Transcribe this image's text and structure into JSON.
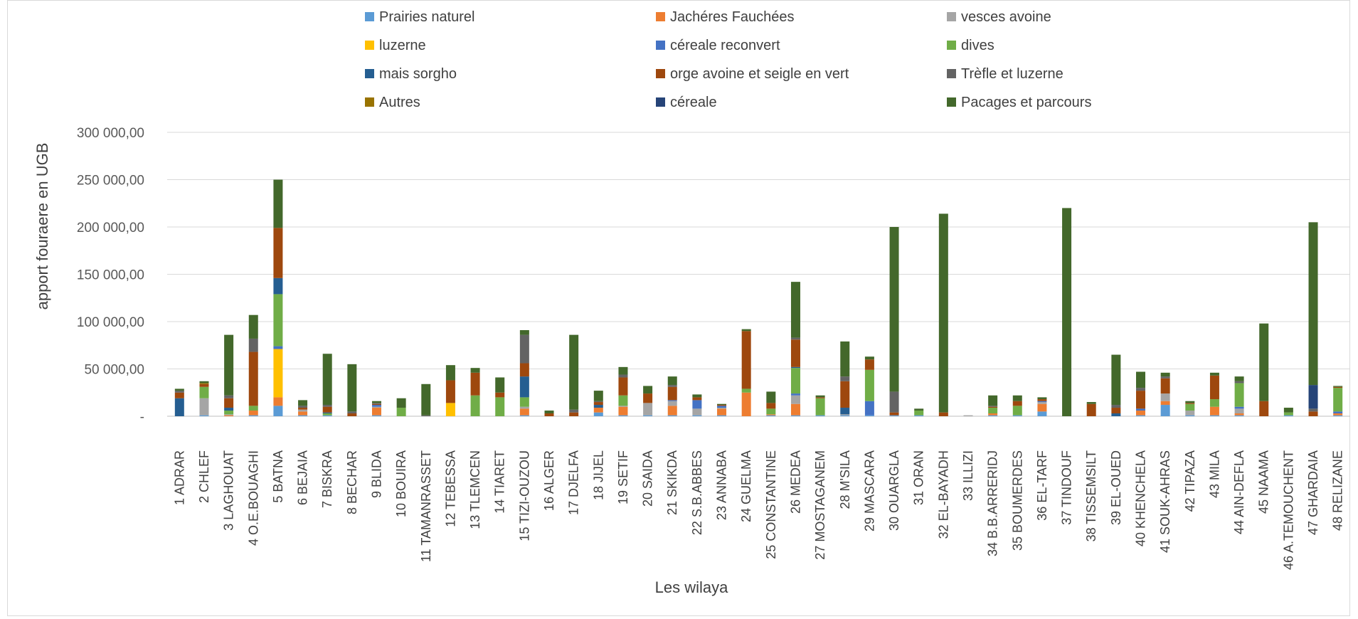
{
  "chart_data": {
    "type": "bar",
    "stacked": true,
    "xlabel": "Les wilaya",
    "ylabel": "apport  fouraere en UGB",
    "ylim": [
      0,
      300000
    ],
    "y_ticks": [
      "-",
      "50 000,00",
      "100 000,00",
      "150 000,00",
      "200 000,00",
      "250 000,00",
      "300 000,00"
    ],
    "grid": true,
    "legend_position": "top",
    "categories": [
      "1 ADRAR",
      "2 CHLEF",
      "3 LAGHOUAT",
      "4 O.E.BOUAGHI",
      "5 BATNA",
      "6 BEJAIA",
      "7 BISKRA",
      "8 BECHAR",
      "9 BLIDA",
      "10 BOUIRA",
      "11 TAMANRASSET",
      "12 TEBESSA",
      "13 TLEMCEN",
      "14 TIARET",
      "15 TIZI-OUZOU",
      "16 ALGER",
      "17 DJELFA",
      "18 JIJEL",
      "19 SETIF",
      "20 SAIDA",
      "21 SKIKDA",
      "22 S.B.ABBES",
      "23 ANNABA",
      "24 GUELMA",
      "25 CONSTANTINE",
      "26 MEDEA",
      "27 MOSTAGANEM",
      "28 M'SILA",
      "29 MASCARA",
      "30 OUARGLA",
      "31 ORAN",
      "32 EL-BAYADH",
      "33 ILLIZI",
      "34 B.B.ARRERIDJ",
      "35 BOUMERDES",
      "36 EL-TARF",
      "37 TINDOUF",
      "38 TISSEMSILT",
      "39 EL-OUED",
      "40 KHENCHELA",
      "41 SOUK-AHRAS",
      "42 TIPAZA",
      "43 MILA",
      "44 AIN-DEFLA",
      "45 NAAMA",
      "46 A.TEMOUCHENT",
      "47 GHARDAIA",
      "48 RELIZANE"
    ],
    "series": [
      {
        "name": "Prairies naturel",
        "color": "#5b9bd5",
        "values": [
          0,
          1000,
          0,
          1000,
          11000,
          1000,
          1000,
          0,
          1000,
          0,
          0,
          0,
          0,
          0,
          1000,
          0,
          0,
          4000,
          1000,
          1000,
          1000,
          1000,
          1000,
          0,
          1000,
          1000,
          1000,
          1000,
          1000,
          1000,
          1000,
          0,
          0,
          1000,
          1000,
          5000,
          0,
          0,
          0,
          1000,
          12000,
          1000,
          1000,
          1000,
          0,
          1000,
          0,
          1000
        ]
      },
      {
        "name": "Jachéres Fauchées",
        "color": "#ed7d31",
        "values": [
          0,
          0,
          1000,
          5000,
          9000,
          4000,
          0,
          0,
          8000,
          0,
          0,
          0,
          0,
          0,
          7000,
          0,
          0,
          5000,
          9000,
          0,
          10000,
          0,
          7000,
          25000,
          1000,
          12000,
          0,
          0,
          0,
          0,
          0,
          0,
          0,
          2000,
          0,
          8000,
          0,
          0,
          0,
          5000,
          4000,
          0,
          9000,
          2000,
          0,
          0,
          0,
          2000
        ]
      },
      {
        "name": "vesces avoine",
        "color": "#a5a5a5",
        "values": [
          0,
          18000,
          1000,
          0,
          0,
          2000,
          0,
          0,
          1000,
          0,
          0,
          0,
          0,
          0,
          2000,
          0,
          0,
          0,
          1000,
          13000,
          5000,
          7000,
          1000,
          0,
          0,
          9000,
          0,
          1000,
          0,
          0,
          0,
          0,
          1000,
          0,
          0,
          2000,
          0,
          0,
          0,
          0,
          8000,
          5000,
          0,
          5000,
          0,
          0,
          0,
          0
        ]
      },
      {
        "name": "luzerne",
        "color": "#ffc000",
        "values": [
          0,
          0,
          0,
          0,
          51000,
          0,
          0,
          0,
          0,
          0,
          0,
          14000,
          0,
          0,
          0,
          0,
          0,
          0,
          0,
          0,
          0,
          0,
          0,
          0,
          0,
          0,
          0,
          0,
          0,
          0,
          0,
          0,
          0,
          0,
          0,
          0,
          0,
          0,
          0,
          0,
          0,
          0,
          0,
          0,
          0,
          0,
          0,
          0
        ]
      },
      {
        "name": "céreale reconvert",
        "color": "#4472c4",
        "values": [
          0,
          0,
          0,
          0,
          3000,
          0,
          0,
          0,
          2000,
          0,
          0,
          0,
          0,
          0,
          0,
          0,
          0,
          0,
          0,
          0,
          1000,
          9000,
          2000,
          0,
          0,
          2000,
          0,
          0,
          15000,
          0,
          0,
          0,
          0,
          0,
          0,
          1000,
          0,
          0,
          0,
          2000,
          0,
          0,
          0,
          2000,
          0,
          0,
          0,
          2000
        ]
      },
      {
        "name": "dives",
        "color": "#70ad47",
        "values": [
          0,
          12000,
          4000,
          5000,
          55000,
          0,
          2000,
          0,
          0,
          9000,
          0,
          0,
          22000,
          20000,
          10000,
          0,
          0,
          0,
          11000,
          0,
          0,
          0,
          0,
          4000,
          6000,
          27000,
          18000,
          0,
          33000,
          0,
          5000,
          0,
          0,
          6000,
          10000,
          0,
          0,
          0,
          0,
          0,
          0,
          7000,
          8000,
          25000,
          0,
          3000,
          0,
          25000
        ]
      },
      {
        "name": "mais sorgho",
        "color": "#255e91",
        "values": [
          19000,
          0,
          3000,
          0,
          17000,
          0,
          1000,
          0,
          0,
          0,
          0,
          0,
          0,
          0,
          22000,
          0,
          0,
          3000,
          0,
          0,
          0,
          0,
          0,
          0,
          0,
          1000,
          0,
          7000,
          0,
          0,
          0,
          0,
          0,
          0,
          0,
          0,
          0,
          0,
          3000,
          0,
          0,
          0,
          0,
          0,
          0,
          0,
          0,
          0
        ]
      },
      {
        "name": "orge avoine et seigle en vert",
        "color": "#9e480e",
        "values": [
          6000,
          3000,
          10000,
          57000,
          53000,
          2000,
          6000,
          3000,
          1000,
          0,
          0,
          24000,
          24000,
          5000,
          14000,
          3000,
          4000,
          3000,
          19000,
          10000,
          14000,
          3000,
          1000,
          61000,
          6000,
          29000,
          1000,
          28000,
          11000,
          3000,
          0,
          4000,
          0,
          1000,
          5000,
          2000,
          0,
          13000,
          6000,
          19000,
          16000,
          1000,
          25000,
          0,
          16000,
          0,
          5000,
          1000
        ]
      },
      {
        "name": "Trèfle et luzerne",
        "color": "#636363",
        "values": [
          2000,
          0,
          3000,
          14000,
          0,
          2000,
          2000,
          2000,
          1000,
          0,
          1000,
          0,
          0,
          0,
          30000,
          0,
          3000,
          1000,
          3000,
          0,
          2000,
          0,
          0,
          0,
          0,
          2000,
          0,
          5000,
          0,
          22000,
          0,
          0,
          0,
          1000,
          0,
          0,
          0,
          0,
          3000,
          3000,
          2000,
          0,
          0,
          2000,
          0,
          0,
          3000,
          0
        ]
      },
      {
        "name": "Autres",
        "color": "#997300",
        "values": [
          0,
          1000,
          0,
          0,
          0,
          0,
          0,
          0,
          0,
          0,
          0,
          0,
          0,
          0,
          0,
          0,
          0,
          0,
          0,
          0,
          0,
          0,
          0,
          0,
          0,
          0,
          0,
          0,
          0,
          0,
          0,
          0,
          0,
          0,
          0,
          0,
          0,
          0,
          0,
          0,
          0,
          0,
          0,
          0,
          0,
          0,
          0,
          0
        ]
      },
      {
        "name": "céreale",
        "color": "#264478",
        "values": [
          0,
          0,
          0,
          0,
          0,
          0,
          0,
          0,
          0,
          0,
          0,
          0,
          0,
          0,
          0,
          0,
          0,
          0,
          0,
          0,
          0,
          0,
          0,
          0,
          0,
          0,
          0,
          0,
          0,
          0,
          0,
          0,
          0,
          0,
          0,
          0,
          0,
          0,
          0,
          0,
          0,
          0,
          0,
          0,
          0,
          0,
          25000,
          0
        ]
      },
      {
        "name": "Pacages et parcours",
        "color": "#43682b",
        "values": [
          2000,
          2000,
          64000,
          25000,
          51000,
          6000,
          54000,
          50000,
          2000,
          10000,
          33000,
          16000,
          5000,
          16000,
          5000,
          3000,
          79000,
          11000,
          8000,
          8000,
          9000,
          3000,
          1000,
          2000,
          12000,
          59000,
          2000,
          37000,
          3000,
          174000,
          2000,
          210000,
          0,
          11000,
          6000,
          2000,
          220000,
          2000,
          53000,
          17000,
          4000,
          2000,
          3000,
          5000,
          82000,
          5000,
          172000,
          1000
        ]
      }
    ]
  }
}
